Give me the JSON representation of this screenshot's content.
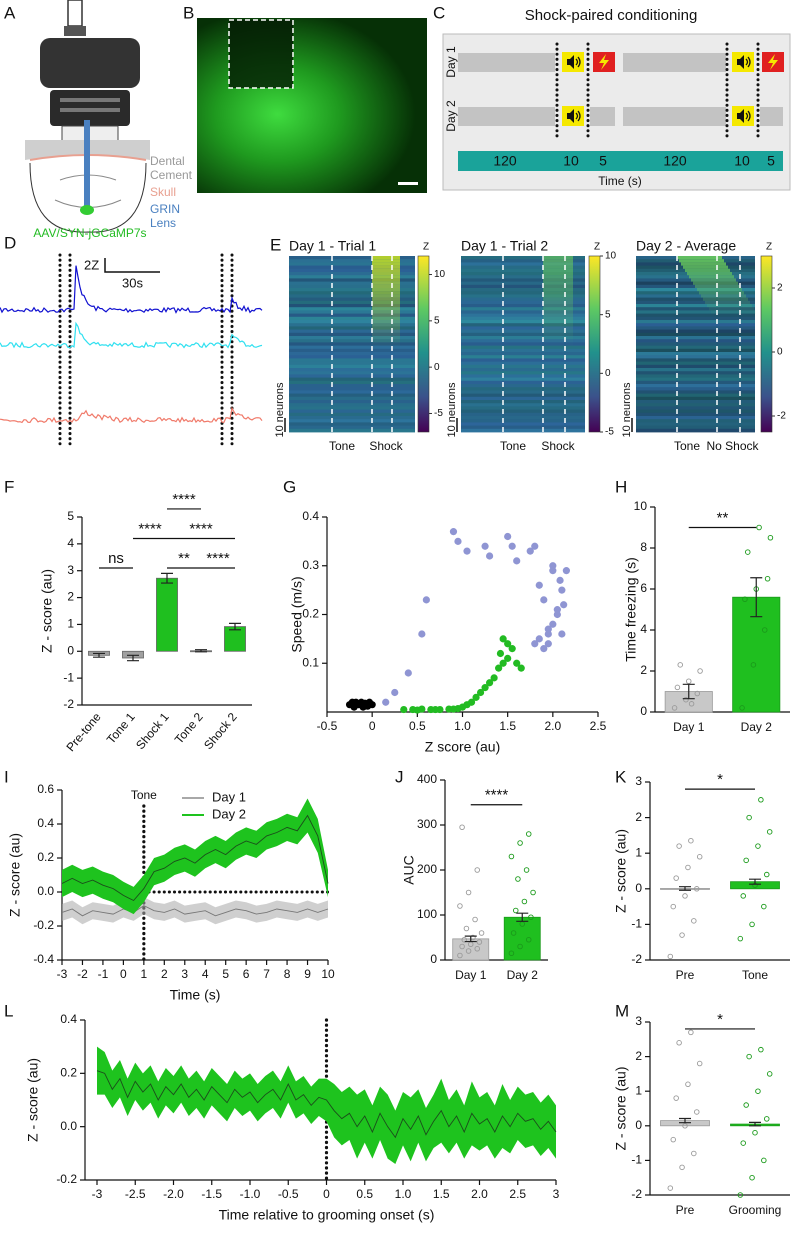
{
  "panels": [
    "A",
    "B",
    "C",
    "D",
    "E",
    "F",
    "G",
    "H",
    "I",
    "J",
    "K",
    "L",
    "M"
  ],
  "implant": {
    "cement": [
      "Dental",
      "Cement"
    ],
    "skull": "Skull",
    "lens": [
      "GRIN",
      "Lens"
    ],
    "virus": "AAV/SYN-jGCaMP7s"
  },
  "protocol": {
    "title": "Shock-paired conditioning",
    "days": [
      "Day 1",
      "Day 2"
    ],
    "durations": [
      120,
      10,
      5,
      120,
      10,
      5
    ],
    "xlabel": "Time (s)"
  },
  "traces": {
    "scale_y": "2Z",
    "scale_x": "30s"
  },
  "heatmaps": [
    {
      "title": "Day 1 - Trial 1",
      "colorbar_label": "Z",
      "zlim": [
        -7,
        12
      ],
      "ticks": [
        10,
        5,
        0,
        -5
      ],
      "neurons": "10 neurons",
      "events": [
        "Tone",
        "Shock"
      ]
    },
    {
      "title": "Day 1 - Trial 2",
      "colorbar_label": "Z",
      "zlim": [
        -5,
        10
      ],
      "ticks": [
        10,
        5,
        0,
        -5
      ],
      "neurons": "10 neurons",
      "events": [
        "Tone",
        "Shock"
      ]
    },
    {
      "title": "Day 2 - Average",
      "colorbar_label": "Z",
      "zlim": [
        -2.5,
        3
      ],
      "ticks": [
        2,
        0,
        -2
      ],
      "neurons": "10 neurons",
      "events": [
        "Tone",
        "No Shock"
      ]
    }
  ],
  "chart_data": [
    {
      "type": "bar",
      "ylabel": "Z - score  (au)",
      "categories": [
        "Pre-tone",
        "Tone 1",
        "Shock 1",
        "Tone 2",
        "Shock 2"
      ],
      "values": [
        -0.15,
        -0.25,
        2.72,
        0.02,
        0.92
      ],
      "errors": [
        0.07,
        0.1,
        0.18,
        0.04,
        0.12
      ],
      "colors": [
        "#a0a0a0",
        "#a0a0a0",
        "#1fbf1f",
        "#a0a0a0",
        "#1fbf1f"
      ],
      "ylim": [
        -2,
        5
      ],
      "yticks": [
        -2,
        -1,
        0,
        1,
        2,
        3,
        4,
        5
      ],
      "annotations": [
        "****",
        "****",
        "****",
        "ns",
        "**",
        "****"
      ]
    },
    {
      "type": "scatter",
      "xlabel": "Z score (au)",
      "ylabel": "Speed (m/s)",
      "series": [
        {
          "color": "#000000",
          "x": [
            -0.25,
            -0.22,
            -0.2,
            -0.18,
            -0.15,
            -0.12,
            -0.1,
            -0.08,
            -0.05,
            -0.03,
            0.0
          ],
          "y": [
            0.015,
            0.02,
            0.01,
            0.02,
            0.015,
            0.02,
            0.01,
            0.018,
            0.012,
            0.02,
            0.015
          ]
        },
        {
          "color": "#22bb22",
          "x": [
            0.35,
            0.45,
            0.55,
            0.65,
            0.75,
            0.85,
            0.95,
            1.0,
            1.05,
            1.1,
            1.15,
            1.2,
            1.25,
            1.3,
            1.35,
            1.4,
            1.45,
            1.5,
            1.55,
            1.6,
            1.65,
            1.45,
            1.5,
            1.42,
            0.5,
            0.7,
            0.9
          ],
          "y": [
            0.005,
            0.005,
            0.006,
            0.005,
            0.005,
            0.006,
            0.007,
            0.01,
            0.015,
            0.02,
            0.03,
            0.04,
            0.05,
            0.06,
            0.07,
            0.09,
            0.1,
            0.11,
            0.13,
            0.1,
            0.09,
            0.15,
            0.14,
            0.12,
            0.004,
            0.005,
            0.006
          ]
        },
        {
          "color": "#8f95d3",
          "x": [
            0.15,
            0.25,
            0.4,
            0.55,
            0.6,
            0.9,
            0.95,
            1.05,
            1.25,
            1.3,
            1.5,
            1.55,
            1.6,
            1.75,
            1.8,
            1.85,
            1.9,
            1.95,
            2.0,
            2.05,
            2.1,
            2.15,
            2.0,
            1.95,
            2.05,
            2.1,
            1.9,
            1.85,
            1.8,
            2.0,
            2.08,
            2.12,
            1.95
          ],
          "y": [
            0.02,
            0.04,
            0.08,
            0.16,
            0.23,
            0.37,
            0.35,
            0.33,
            0.34,
            0.32,
            0.36,
            0.34,
            0.31,
            0.33,
            0.34,
            0.26,
            0.23,
            0.16,
            0.18,
            0.21,
            0.25,
            0.29,
            0.29,
            0.14,
            0.2,
            0.16,
            0.13,
            0.15,
            0.14,
            0.3,
            0.27,
            0.22,
            0.17
          ]
        }
      ],
      "xlim": [
        -0.5,
        2.5
      ],
      "xticks": [
        -0.5,
        0,
        0.5,
        {
          "value": 1,
          "label": "1.0"
        },
        1.5,
        {
          "value": 2,
          "label": "2.0"
        },
        2.5
      ],
      "ylim": [
        0,
        0.4
      ],
      "yticks": [
        0.1,
        0.2,
        0.3,
        0.4
      ]
    },
    {
      "type": "bar",
      "ylabel": "Time freezing (s)",
      "categories": [
        "Day 1",
        "Day 2"
      ],
      "values": [
        1.0,
        5.6
      ],
      "errors": [
        0.35,
        0.95
      ],
      "colors": [
        "#c8c8c8",
        "#1fbf1f"
      ],
      "point_colors": [
        "#9a9a9a",
        "#1a9a1a"
      ],
      "points": [
        [
          0.2,
          0.6,
          0.9,
          1.2,
          1.5,
          2.0,
          2.3,
          0.4
        ],
        [
          0.2,
          2.3,
          4.0,
          5.5,
          6.0,
          6.5,
          7.8,
          9.0,
          8.5
        ]
      ],
      "ylim": [
        0,
        10
      ],
      "yticks": [
        0,
        2,
        4,
        6,
        8,
        10
      ],
      "annotations": [
        "**"
      ]
    },
    {
      "type": "line",
      "xlabel": "Time (s)",
      "ylabel": "Z - score (au)",
      "annotation": "Tone",
      "vline": 1,
      "hline": 0,
      "x": [
        -3,
        -2.5,
        -2,
        -1.5,
        -1,
        -0.5,
        0,
        0.5,
        1,
        1.5,
        2,
        2.5,
        3,
        3.5,
        4,
        4.5,
        5,
        5.5,
        6,
        6.5,
        7,
        7.5,
        8,
        8.5,
        9,
        9.5,
        10
      ],
      "series": [
        {
          "name": "Day 1",
          "color": "#a8a8a8",
          "values": [
            -0.12,
            -0.1,
            -0.14,
            -0.11,
            -0.12,
            -0.13,
            -0.1,
            -0.12,
            -0.08,
            -0.11,
            -0.12,
            -0.1,
            -0.13,
            -0.12,
            -0.11,
            -0.14,
            -0.12,
            -0.1,
            -0.11,
            -0.13,
            -0.12,
            -0.1,
            -0.11,
            -0.12,
            -0.1,
            -0.12,
            -0.1
          ],
          "errors": [
            0.05,
            0.05,
            0.05,
            0.05,
            0.05,
            0.05,
            0.05,
            0.05,
            0.05,
            0.05,
            0.05,
            0.05,
            0.05,
            0.05,
            0.05,
            0.05,
            0.05,
            0.05,
            0.05,
            0.05,
            0.05,
            0.05,
            0.05,
            0.05,
            0.05,
            0.05,
            0.05
          ]
        },
        {
          "name": "Day 2",
          "color": "#1ec31e",
          "values": [
            0.05,
            0.08,
            0.05,
            0.07,
            0.04,
            0.02,
            -0.02,
            -0.05,
            0.02,
            0.12,
            0.14,
            0.18,
            0.2,
            0.17,
            0.22,
            0.25,
            0.22,
            0.27,
            0.3,
            0.28,
            0.33,
            0.35,
            0.38,
            0.36,
            0.45,
            0.33,
            0.05
          ],
          "errors": [
            0.08,
            0.08,
            0.08,
            0.08,
            0.08,
            0.08,
            0.08,
            0.08,
            0.08,
            0.08,
            0.08,
            0.08,
            0.08,
            0.08,
            0.08,
            0.08,
            0.08,
            0.08,
            0.08,
            0.08,
            0.08,
            0.08,
            0.08,
            0.08,
            0.1,
            0.1,
            0.08
          ]
        }
      ],
      "xlim": [
        -3,
        10
      ],
      "xticks": [
        -3,
        -2,
        -1,
        0,
        1,
        2,
        3,
        4,
        5,
        6,
        7,
        8,
        9,
        10
      ],
      "ylim": [
        -0.4,
        0.6
      ],
      "yticks": [
        -0.4,
        -0.2,
        {
          "value": 0,
          "label": "0.0"
        },
        0.2,
        0.4,
        0.6
      ]
    },
    {
      "type": "bar",
      "ylabel": "AUC",
      "categories": [
        "Day 1",
        "Day 2"
      ],
      "values": [
        47,
        95
      ],
      "errors": [
        6,
        9
      ],
      "colors": [
        "#c8c8c8",
        "#1fbf1f"
      ],
      "point_colors": [
        "#9a9a9a",
        "#1a9a1a"
      ],
      "points": [
        [
          10,
          20,
          25,
          30,
          35,
          40,
          45,
          50,
          60,
          70,
          90,
          120,
          150,
          200,
          295
        ],
        [
          15,
          30,
          45,
          60,
          80,
          95,
          110,
          130,
          150,
          180,
          200,
          230,
          260,
          280
        ]
      ],
      "ylim": [
        0,
        400
      ],
      "yticks": [
        0,
        100,
        200,
        300,
        400
      ],
      "annotations": [
        "****"
      ]
    },
    {
      "type": "bar",
      "ylabel": "Z - score  (au)",
      "categories": [
        "Pre",
        "Tone"
      ],
      "values": [
        0.01,
        0.2
      ],
      "errors": [
        0.05,
        0.07
      ],
      "colors": [
        "#c8c8c8",
        "#1fbf1f"
      ],
      "point_colors": [
        "#9a9a9a",
        "#1a9a1a"
      ],
      "points": [
        [
          -1.9,
          -1.3,
          -0.9,
          -0.5,
          -0.2,
          0,
          0.3,
          0.6,
          0.9,
          1.2,
          1.35
        ],
        [
          -1.4,
          -1.0,
          -0.5,
          -0.2,
          0.1,
          0.4,
          0.8,
          1.2,
          1.6,
          2.0,
          2.5
        ]
      ],
      "ylim": [
        -2,
        3
      ],
      "yticks": [
        -2,
        -1,
        0,
        1,
        2,
        3
      ],
      "annotations": [
        "*"
      ]
    },
    {
      "type": "line",
      "xlabel": "Time relative to grooming onset (s)",
      "ylabel": "Z - score  (au)",
      "vline": 0,
      "x": [
        -3,
        -2.9,
        -2.8,
        -2.7,
        -2.6,
        -2.5,
        -2.4,
        -2.3,
        -2.2,
        -2.1,
        -2,
        -1.9,
        -1.8,
        -1.7,
        -1.6,
        -1.5,
        -1.4,
        -1.3,
        -1.2,
        -1.1,
        -1,
        -0.9,
        -0.8,
        -0.7,
        -0.6,
        -0.5,
        -0.4,
        -0.3,
        -0.2,
        -0.1,
        0,
        0.1,
        0.2,
        0.3,
        0.4,
        0.5,
        0.6,
        0.7,
        0.8,
        0.9,
        1,
        1.1,
        1.2,
        1.3,
        1.4,
        1.5,
        1.6,
        1.7,
        1.8,
        1.9,
        2,
        2.1,
        2.2,
        2.3,
        2.4,
        2.5,
        2.6,
        2.7,
        2.8,
        2.9,
        3
      ],
      "series": [
        {
          "color": "#1ec31e",
          "values": [
            0.21,
            0.2,
            0.14,
            0.18,
            0.11,
            0.17,
            0.13,
            0.16,
            0.1,
            0.15,
            0.12,
            0.16,
            0.11,
            0.14,
            0.1,
            0.15,
            0.12,
            0.09,
            0.14,
            0.11,
            0.13,
            0.09,
            0.12,
            0.14,
            0.1,
            0.16,
            0.1,
            0.12,
            0.08,
            0.11,
            0.1,
            0.06,
            0.03,
            0.05,
            0.0,
            0.04,
            -0.02,
            0.05,
            0.0,
            -0.04,
            0.03,
            -0.01,
            0.04,
            -0.03,
            0.02,
            0.06,
            0.0,
            0.04,
            -0.02,
            0.05,
            0.01,
            0.03,
            -0.02,
            0.04,
            0.0,
            0.05,
            0.02,
            0.03,
            -0.01,
            0.02,
            -0.02
          ],
          "errors": [
            0.09,
            0.08,
            0.07,
            0.07,
            0.07,
            0.07,
            0.07,
            0.07,
            0.07,
            0.07,
            0.07,
            0.07,
            0.07,
            0.07,
            0.07,
            0.07,
            0.07,
            0.07,
            0.07,
            0.07,
            0.07,
            0.07,
            0.07,
            0.07,
            0.07,
            0.07,
            0.07,
            0.07,
            0.07,
            0.07,
            0.08,
            0.1,
            0.1,
            0.1,
            0.12,
            0.1,
            0.1,
            0.1,
            0.12,
            0.1,
            0.1,
            0.12,
            0.1,
            0.1,
            0.1,
            0.12,
            0.1,
            0.1,
            0.1,
            0.12,
            0.1,
            0.1,
            0.1,
            0.12,
            0.1,
            0.1,
            0.1,
            0.1,
            0.1,
            0.1,
            0.1
          ]
        }
      ],
      "xlim": [
        -3,
        3
      ],
      "xticks": [
        -3,
        -2.5,
        {
          "value": -2,
          "label": "-2.0"
        },
        -1.5,
        {
          "value": -1,
          "label": "-1.0"
        },
        -0.5,
        0,
        0.5,
        {
          "value": 1,
          "label": "1.0"
        },
        1.5,
        {
          "value": 2,
          "label": "2.0"
        },
        2.5,
        3
      ],
      "ylim": [
        -0.2,
        0.4
      ],
      "yticks": [
        -0.2,
        {
          "value": 0,
          "label": "0.0"
        },
        0.2,
        0.4
      ]
    },
    {
      "type": "bar",
      "ylabel": "Z - score  (au)",
      "categories": [
        "Pre",
        "Grooming"
      ],
      "values": [
        0.15,
        0.05
      ],
      "errors": [
        0.06,
        0.05
      ],
      "colors": [
        "#c8c8c8",
        "#1fbf1f"
      ],
      "point_colors": [
        "#9a9a9a",
        "#1a9a1a"
      ],
      "points": [
        [
          -1.8,
          -1.2,
          -0.8,
          -0.4,
          0,
          0.4,
          0.8,
          1.2,
          1.8,
          2.4,
          2.7
        ],
        [
          -2.0,
          -1.5,
          -1.0,
          -0.5,
          -0.2,
          0.2,
          0.6,
          1.0,
          1.5,
          2.0,
          2.2
        ]
      ],
      "ylim": [
        -2,
        3
      ],
      "yticks": [
        -2,
        -1,
        0,
        1,
        2,
        3
      ],
      "annotations": [
        "*"
      ]
    }
  ]
}
